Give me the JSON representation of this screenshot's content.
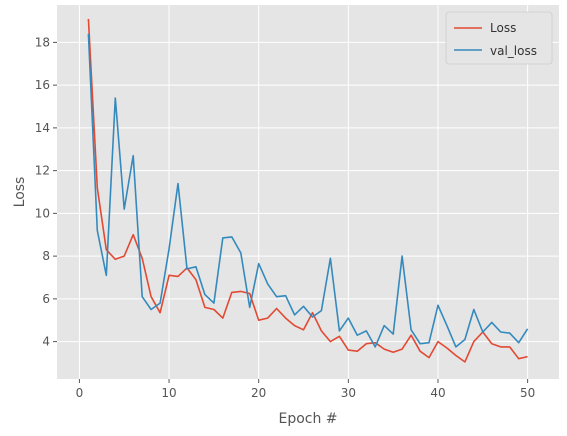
{
  "chart_data": {
    "type": "line",
    "title": "",
    "xlabel": "Epoch #",
    "ylabel": "Loss",
    "xlim": [
      -2.5,
      53.5
    ],
    "ylim": [
      2.25,
      19.75
    ],
    "xticks": [
      0,
      10,
      20,
      30,
      40,
      50
    ],
    "yticks": [
      4,
      6,
      8,
      10,
      12,
      14,
      16,
      18
    ],
    "grid": true,
    "legend_position": "top-right",
    "x": [
      1,
      2,
      3,
      4,
      5,
      6,
      7,
      8,
      9,
      10,
      11,
      12,
      13,
      14,
      15,
      16,
      17,
      18,
      19,
      20,
      21,
      22,
      23,
      24,
      25,
      26,
      27,
      28,
      29,
      30,
      31,
      32,
      33,
      34,
      35,
      36,
      37,
      38,
      39,
      40,
      41,
      42,
      43,
      44,
      45,
      46,
      47,
      48,
      49,
      50
    ],
    "series": [
      {
        "name": "Loss",
        "color": "#E24A33",
        "values": [
          19.1,
          11.2,
          8.3,
          7.85,
          8.0,
          9.0,
          7.9,
          6.1,
          5.35,
          7.1,
          7.05,
          7.45,
          6.9,
          5.6,
          5.5,
          5.1,
          6.3,
          6.35,
          6.25,
          5.0,
          5.1,
          5.55,
          5.1,
          4.75,
          4.55,
          5.35,
          4.5,
          4.0,
          4.25,
          3.6,
          3.55,
          3.9,
          3.95,
          3.65,
          3.5,
          3.65,
          4.3,
          3.55,
          3.25,
          4.0,
          3.7,
          3.35,
          3.05,
          4.0,
          4.45,
          3.9,
          3.75,
          3.75,
          3.2,
          3.3
        ]
      },
      {
        "name": "val_loss",
        "color": "#348ABD",
        "values": [
          18.4,
          9.2,
          7.1,
          15.4,
          10.2,
          12.7,
          6.1,
          5.5,
          5.8,
          8.35,
          11.4,
          7.4,
          7.5,
          6.2,
          5.8,
          8.85,
          8.9,
          8.15,
          5.6,
          7.65,
          6.7,
          6.1,
          6.15,
          5.25,
          5.65,
          5.15,
          5.45,
          7.9,
          4.5,
          5.1,
          4.3,
          4.5,
          3.75,
          4.75,
          4.35,
          8.0,
          4.55,
          3.9,
          3.95,
          5.7,
          4.75,
          3.75,
          4.1,
          5.5,
          4.45,
          4.9,
          4.45,
          4.4,
          3.95,
          4.6
        ]
      }
    ]
  }
}
